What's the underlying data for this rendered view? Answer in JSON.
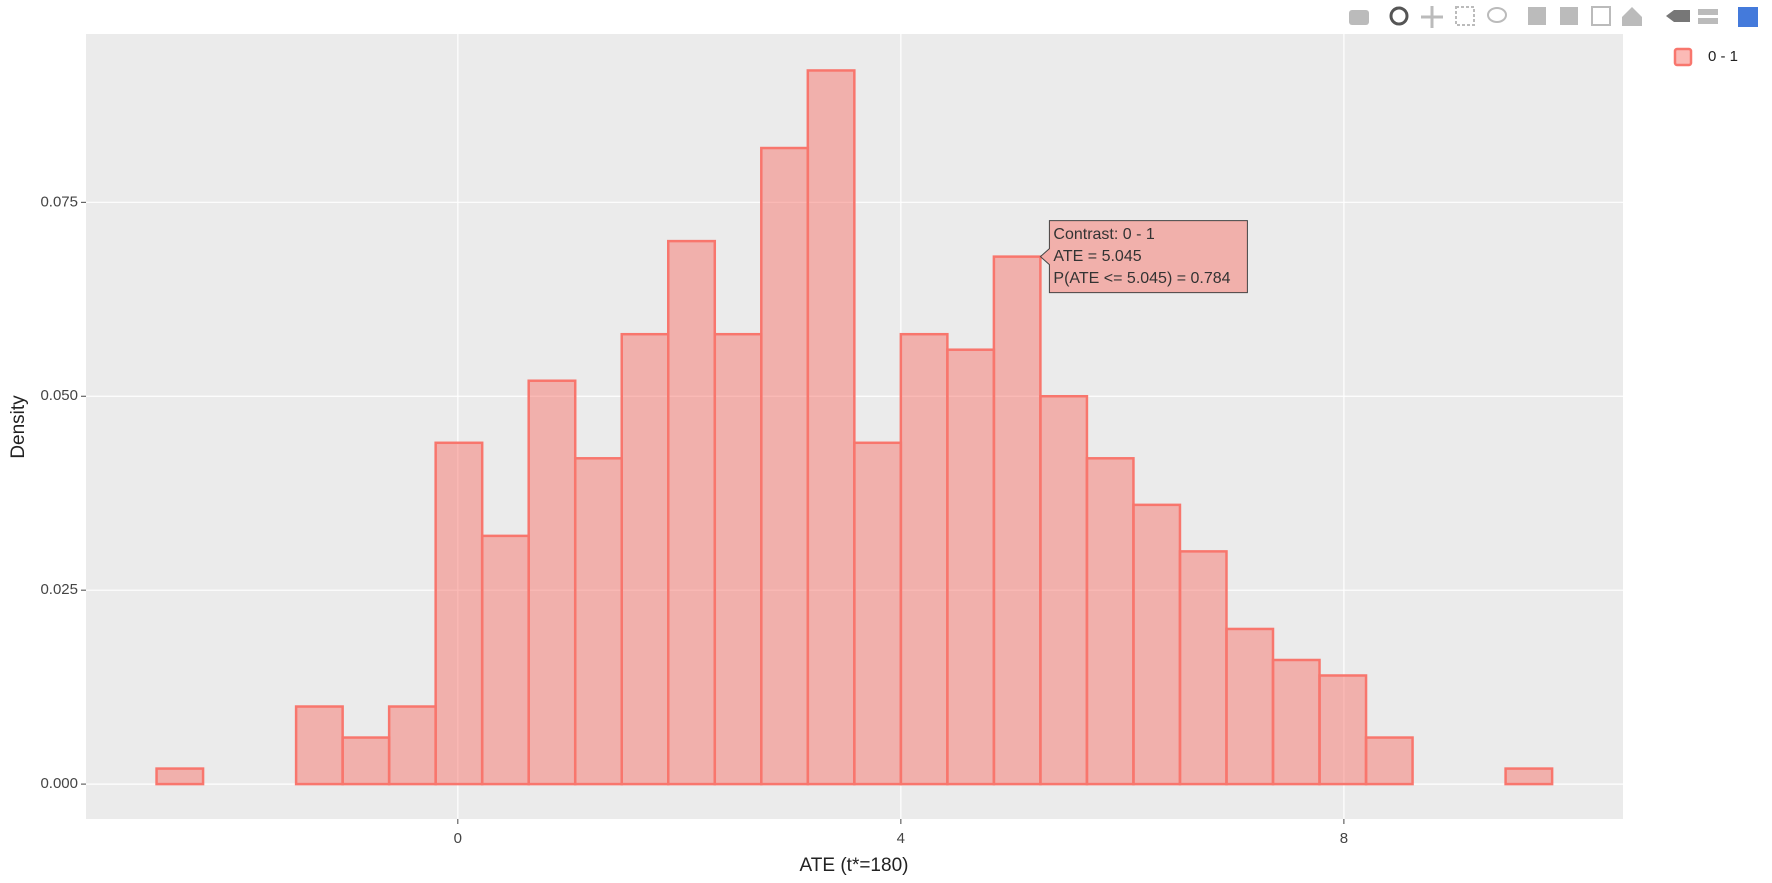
{
  "chart_data": {
    "type": "histogram",
    "xlabel": "ATE (t*=180)",
    "ylabel": "Density",
    "bins": [
      -2.72,
      -2.3,
      -1.88,
      -1.46,
      -1.04,
      -0.62,
      -0.2,
      0.22,
      0.64,
      1.06,
      1.48,
      1.9,
      2.32,
      2.74,
      3.16,
      3.58,
      4.0,
      4.42,
      4.84,
      5.26,
      5.68,
      6.1,
      6.52,
      6.94,
      7.36,
      7.78,
      8.2,
      8.62,
      9.04,
      9.46,
      9.88
    ],
    "series": [
      {
        "name": "0 - 1",
        "color": "#F8766D",
        "values": [
          0.002,
          0,
          0,
          0.01,
          0.006,
          0.01,
          0.044,
          0.032,
          0.052,
          0.042,
          0.058,
          0.07,
          0.058,
          0.082,
          0.092,
          0.044,
          0.058,
          0.056,
          0.068,
          0.05,
          0.042,
          0.036,
          0.03,
          0.02,
          0.016,
          0.014,
          0.006,
          0,
          0,
          0.002
        ]
      }
    ],
    "xlim": [
      -3.357,
      10.52
    ],
    "xticks": [
      0,
      4,
      8
    ],
    "ylim": [
      -0.0045,
      0.0967
    ],
    "yticks": [
      {
        "value": 0,
        "label": "0.000"
      },
      {
        "value": 0.025,
        "label": "0.025"
      },
      {
        "value": 0.05,
        "label": "0.050"
      },
      {
        "value": 0.075,
        "label": "0.075"
      }
    ],
    "grid": true,
    "legend": "right",
    "tooltip": {
      "lines": [
        "Contrast: 0 - 1",
        "ATE = 5.045",
        "P(ATE <= 5.045) = 0.784"
      ]
    }
  }
}
